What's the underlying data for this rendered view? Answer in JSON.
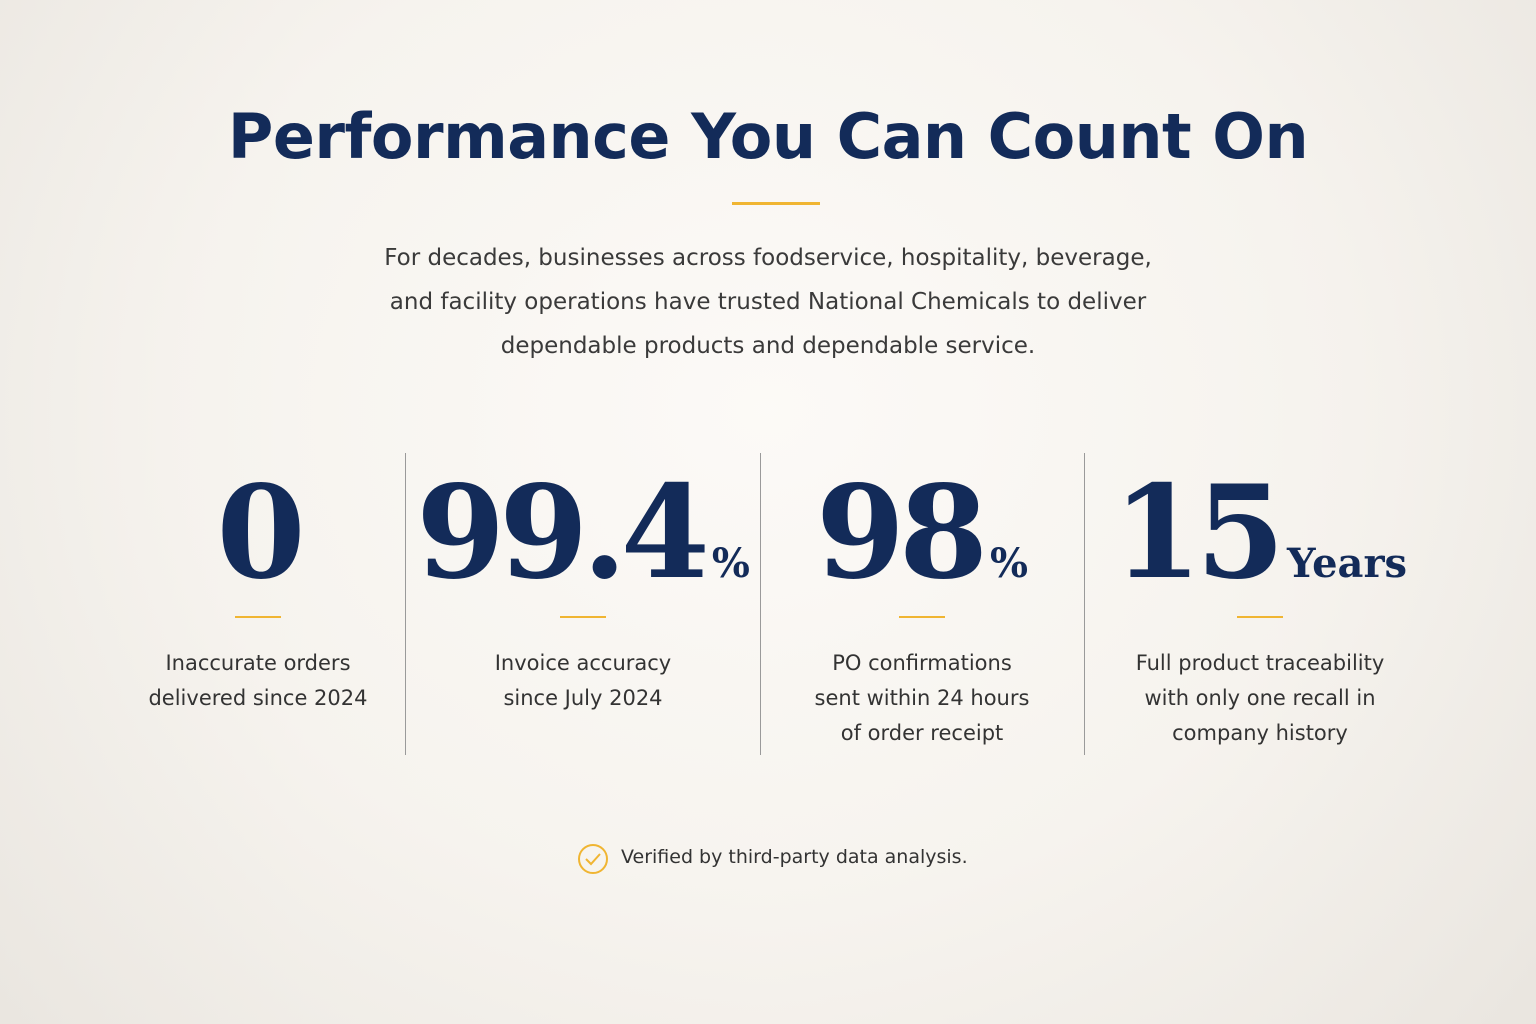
{
  "header": {
    "title": "Performance You Can Count On",
    "intro": [
      "For decades, businesses across foodservice, hospitality, beverage,",
      "and facility operations have trusted National Chemicals to deliver",
      "dependable products and dependable service."
    ]
  },
  "stats": [
    {
      "value": 0,
      "label": [
        "Inaccurate orders",
        "delivered since 2024"
      ]
    },
    {
      "value": 99.4,
      "unit": "%",
      "label": [
        "Invoice accuracy",
        "since July 2024"
      ]
    },
    {
      "value": 98,
      "unit": "%",
      "label": [
        "PO confirmations",
        "sent within 24 hours",
        "of order receipt"
      ]
    },
    {
      "value": 15,
      "unit": "Years",
      "label": [
        "Full product traceability",
        "with only one recall in",
        "company history"
      ]
    }
  ],
  "footer": {
    "note": "Verified by third-party data analysis."
  }
}
